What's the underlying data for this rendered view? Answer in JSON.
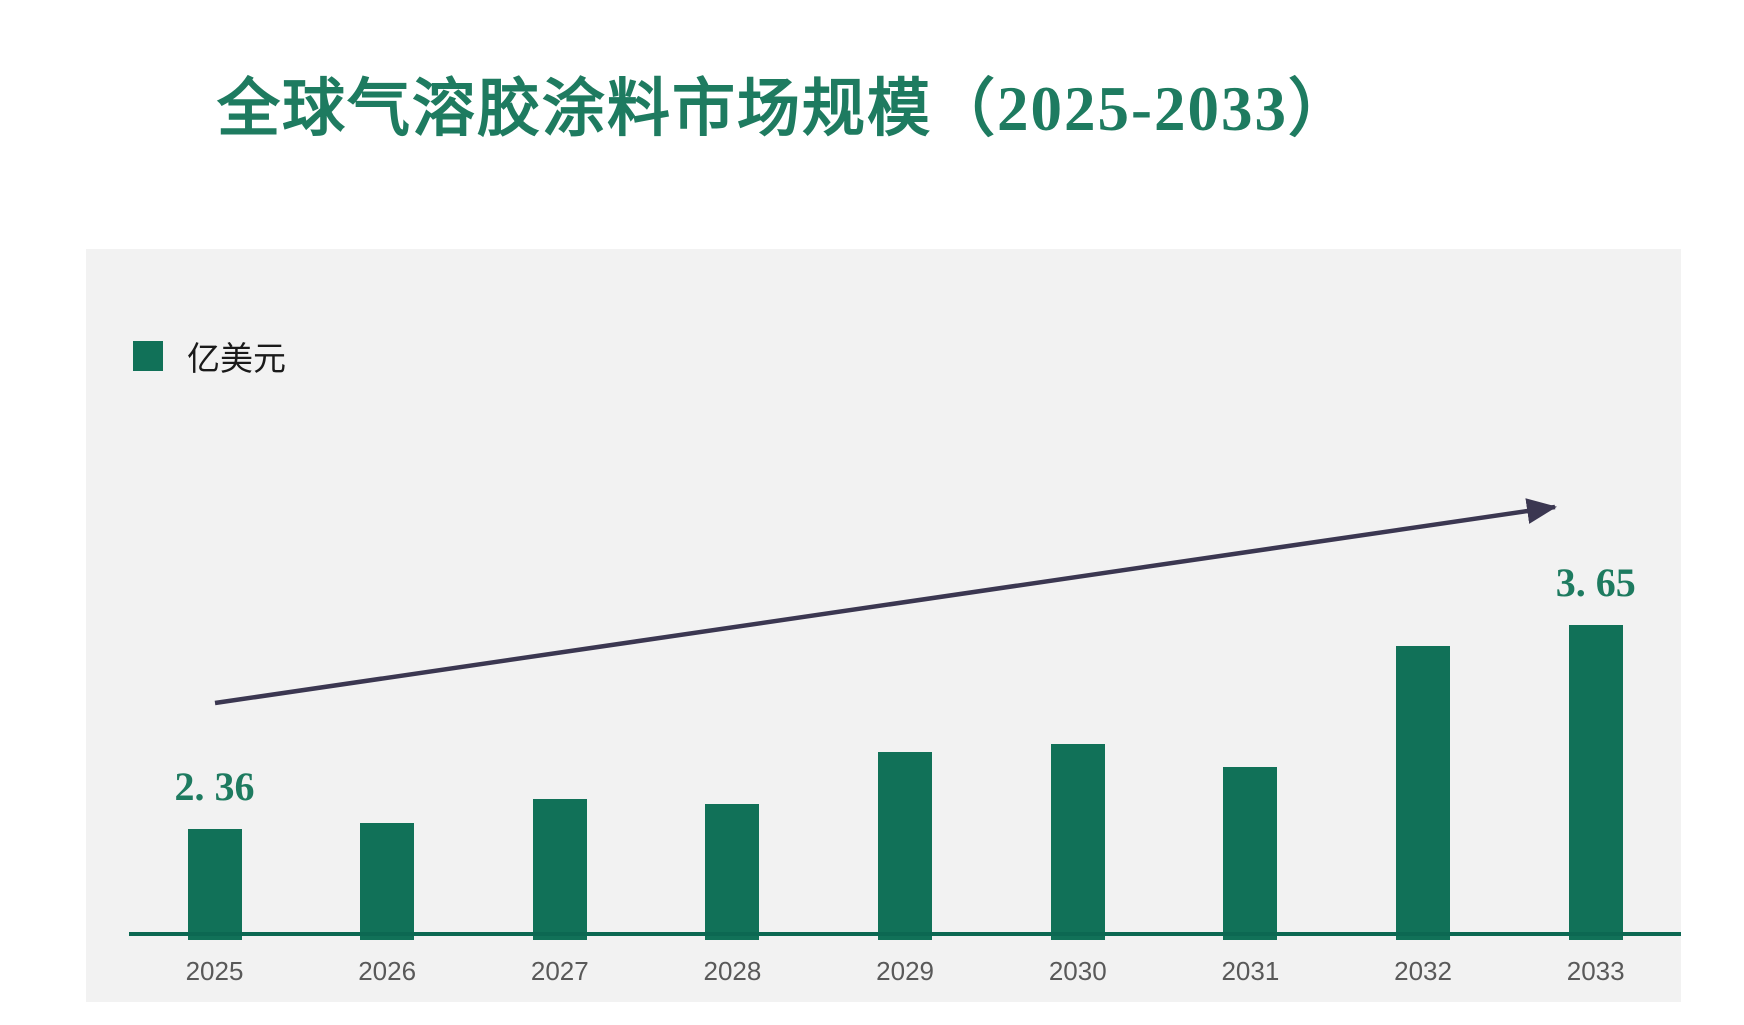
{
  "page": {
    "title": "全球气溶胶涂料市场规模（2025-2033）"
  },
  "legend": {
    "label": "亿美元"
  },
  "chart_data": {
    "type": "bar",
    "title": "全球气溶胶涂料市场规模（2025-2033）",
    "unit": "亿美元",
    "categories": [
      "2025",
      "2026",
      "2027",
      "2028",
      "2029",
      "2030",
      "2031",
      "2032",
      "2033"
    ],
    "values": [
      2.36,
      2.4,
      2.55,
      2.52,
      2.85,
      2.9,
      2.75,
      3.52,
      3.65
    ],
    "data_labels": {
      "2025": "2. 36",
      "2033": "3. 65"
    },
    "ylim": [
      1.68,
      4.35
    ],
    "xlabel": "",
    "ylabel": "",
    "grid": false,
    "legend_position": "top-left",
    "annotations": [
      {
        "type": "arrow",
        "description": "upward trend arrow across bars"
      }
    ]
  },
  "colors": {
    "bar": "#117158",
    "axis_line": "#0c6852",
    "title_text": "#1e7b60",
    "value_label_text": "#1e7b60",
    "year_label_text": "#595959",
    "panel_background": "#f2f2f2",
    "page_background": "#ffffff",
    "arrow": "#3b3751",
    "legend_text": "#1a1a1a"
  }
}
